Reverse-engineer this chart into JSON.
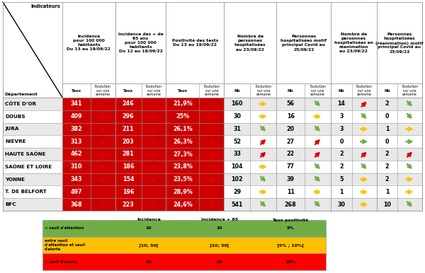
{
  "departments": [
    "CÔTE D'OR",
    "DOUBS",
    "JURA",
    "NIEVRE",
    "HAUTE SAÔNE",
    "SAÔNE ET LOIRE",
    "YONNE",
    "T. DE BELFORT",
    "BFC"
  ],
  "data": {
    "CÔTE D'OR": {
      "inc": "341",
      "inc_arr": "red_up",
      "inc65": "246",
      "inc65_arr": "red_up",
      "pos": "21,9%",
      "pos_arr": "red_up",
      "hosp": "160",
      "hosp_arr": "yellow_flat",
      "hosp_covid": "56",
      "hosp_covid_arr": "green_down",
      "rea": "14",
      "rea_arr": "red_up",
      "rea_covid": "2",
      "rea_covid_arr": "green_down"
    },
    "DOUBS": {
      "inc": "409",
      "inc_arr": "red_up",
      "inc65": "296",
      "inc65_arr": "red_up",
      "pos": "25%",
      "pos_arr": "red_up",
      "hosp": "30",
      "hosp_arr": "yellow_flat",
      "hosp_covid": "16",
      "hosp_covid_arr": "yellow_flat",
      "rea": "3",
      "rea_arr": "green_down",
      "rea_covid": "0",
      "rea_covid_arr": "green_down"
    },
    "JURA": {
      "inc": "382",
      "inc_arr": "red_up",
      "inc65": "211",
      "inc65_arr": "red_up",
      "pos": "26,1%",
      "pos_arr": "red_up",
      "hosp": "31",
      "hosp_arr": "green_down",
      "hosp_covid": "20",
      "hosp_covid_arr": "green_down",
      "rea": "3",
      "rea_arr": "yellow_flat",
      "rea_covid": "1",
      "rea_covid_arr": "yellow_flat"
    },
    "NIEVRE": {
      "inc": "313",
      "inc_arr": "red_up",
      "inc65": "203",
      "inc65_arr": "red_up",
      "pos": "26,3%",
      "pos_arr": "red_up",
      "hosp": "52",
      "hosp_arr": "red_up",
      "hosp_covid": "27",
      "hosp_covid_arr": "red_up",
      "rea": "0",
      "rea_arr": "green_flat",
      "rea_covid": "0",
      "rea_covid_arr": "green_flat"
    },
    "HAUTE SAÔNE": {
      "inc": "462",
      "inc_arr": "red_up",
      "inc65": "281",
      "inc65_arr": "red_up",
      "pos": "27,3%",
      "pos_arr": "red_up",
      "hosp": "33",
      "hosp_arr": "red_up",
      "hosp_covid": "22",
      "hosp_covid_arr": "red_up",
      "rea": "2",
      "rea_arr": "red_up",
      "rea_covid": "2",
      "rea_covid_arr": "red_up"
    },
    "SAÔNE ET LOIRE": {
      "inc": "310",
      "inc_arr": "red_up",
      "inc65": "186",
      "inc65_arr": "red_up",
      "pos": "23,8%",
      "pos_arr": "red_up",
      "hosp": "104",
      "hosp_arr": "yellow_flat",
      "hosp_covid": "77",
      "hosp_covid_arr": "green_down",
      "rea": "2",
      "rea_arr": "green_down",
      "rea_covid": "2",
      "rea_covid_arr": "green_down"
    },
    "YONNE": {
      "inc": "343",
      "inc_arr": "red_up",
      "inc65": "154",
      "inc65_arr": "red_up",
      "pos": "23,5%",
      "pos_arr": "red_up",
      "hosp": "102",
      "hosp_arr": "green_down",
      "hosp_covid": "39",
      "hosp_covid_arr": "green_down",
      "rea": "5",
      "rea_arr": "yellow_flat",
      "rea_covid": "2",
      "rea_covid_arr": "yellow_flat"
    },
    "T. DE BELFORT": {
      "inc": "497",
      "inc_arr": "red_up",
      "inc65": "196",
      "inc65_arr": "red_up",
      "pos": "28,9%",
      "pos_arr": "red_up",
      "hosp": "29",
      "hosp_arr": "yellow_flat",
      "hosp_covid": "11",
      "hosp_covid_arr": "yellow_flat",
      "rea": "1",
      "rea_arr": "yellow_flat",
      "rea_covid": "1",
      "rea_covid_arr": "yellow_flat"
    },
    "BFC": {
      "inc": "368",
      "inc_arr": "red_up",
      "inc65": "223",
      "inc65_arr": "red_up",
      "pos": "24,6%",
      "pos_arr": "red_up",
      "hosp": "541",
      "hosp_arr": "green_down",
      "hosp_covid": "268",
      "hosp_covid_arr": "green_down",
      "rea": "30",
      "rea_arr": "yellow_flat",
      "rea_covid": "10",
      "rea_covid_arr": "green_down"
    }
  },
  "row_colors": [
    "#e8e8e8",
    "#ffffff",
    "#e8e8e8",
    "#ffffff",
    "#e8e8e8",
    "#ffffff",
    "#e8e8e8",
    "#ffffff",
    "#e8e8e8"
  ],
  "col_headers": [
    "Incidence\npour 100 000\nhabitants\nDu 13 au 19/09/22",
    "Incidence des + de\n65 ans\npour 100 000\nhabitants\nDu 12 au 18/09/22",
    "Positivité des tests\nDu 13 au 19/09/22",
    "Nombre de\npersonnes\nhospitalisées\nau 23/09/22",
    "Personnes\nhospitalisées motif\nprincipal Covid au\n23/09/22",
    "Nombre de\npersonnes\nhospitalisées en\nréanimation\nau 23/09/22",
    "Personnes\nhospitalisées\n(réanimation) motif\nprincipal Covid au\n23/09/22"
  ],
  "legend_headers": [
    "Incidence",
    "Incidence + 65",
    "Taux positivité"
  ],
  "legend_rows": [
    {
      "label": "< seuil d'attention",
      "values": [
        "10",
        "10",
        "5%"
      ],
      "color": "#70ad47"
    },
    {
      "label": "entre seuil\nd'attention et seuil\nd'alerte",
      "values": [
        "]10; 50[",
        "]10; 50[",
        "]5% ; 10%["
      ],
      "color": "#ffc000"
    },
    {
      "label": "> seuil d'alerte",
      "values": [
        "50",
        "50",
        "10%"
      ],
      "color": "#ff0000"
    }
  ],
  "bg_color": "#ffffff",
  "border_color": "#999999",
  "red_col_color": "#cc0000",
  "arrow_colors": {
    "red_up": "#dd0000",
    "green_down": "#70ad47",
    "yellow_flat": "#ffc000",
    "green_flat": "#70ad47"
  }
}
